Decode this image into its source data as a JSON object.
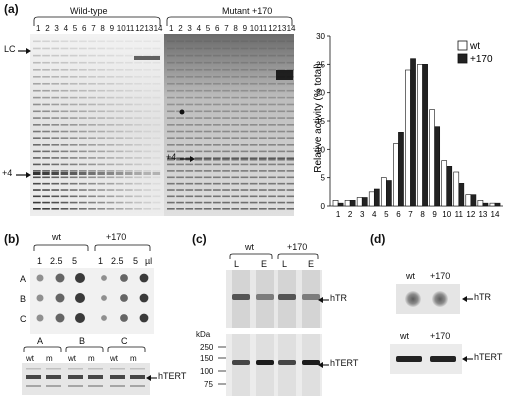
{
  "panels": {
    "a": {
      "label": "(a)",
      "gel": {
        "groups": [
          "Wild-type",
          "Mutant +170"
        ],
        "lanes": [
          "1",
          "2",
          "3",
          "4",
          "5",
          "6",
          "7",
          "8",
          "9",
          "10",
          "11",
          "12",
          "13",
          "14"
        ],
        "markers": [
          "LC",
          "+4"
        ]
      },
      "chart": {
        "ylabel": "Relative activity (% total)",
        "legend": [
          "wt",
          "+170"
        ]
      }
    },
    "b": {
      "label": "(b)",
      "groups": [
        "wt",
        "+170"
      ],
      "volumes": [
        "1",
        "2.5",
        "5"
      ],
      "unit": "µl",
      "rows": [
        "A",
        "B",
        "C"
      ],
      "blot_groups": [
        "A",
        "B",
        "C"
      ],
      "blot_lanes": [
        "wt",
        "m"
      ],
      "band": "hTERT"
    },
    "c": {
      "label": "(c)",
      "groups": [
        "wt",
        "+170"
      ],
      "lanes": [
        "L",
        "E",
        "L",
        "E"
      ],
      "top_band": "hTR",
      "kda_label": "kDa",
      "mw_markers": [
        "250",
        "150",
        "100",
        "75"
      ],
      "bottom_band": "hTERT"
    },
    "d": {
      "label": "(d)",
      "groups": [
        "wt",
        "+170"
      ],
      "top_band": "hTR",
      "bottom_band": "hTERT"
    }
  },
  "chart_data": {
    "type": "bar",
    "categories": [
      "1",
      "2",
      "3",
      "4",
      "5",
      "6",
      "7",
      "8",
      "9",
      "10",
      "11",
      "12",
      "13",
      "14"
    ],
    "series": [
      {
        "name": "wt",
        "values": [
          1,
          1,
          1.5,
          2.5,
          5,
          11,
          24,
          25,
          17,
          8,
          6,
          2,
          1,
          0.5
        ],
        "color": "#ffffff"
      },
      {
        "name": "+170",
        "values": [
          0.5,
          1,
          1.5,
          3,
          4.5,
          13,
          26,
          25,
          14,
          7,
          4,
          2,
          0.5,
          0.5
        ],
        "color": "#222222"
      }
    ],
    "xlabel": "",
    "ylabel": "Relative activity (% total)",
    "ylim": [
      0,
      30
    ],
    "yticks": [
      0,
      5,
      10,
      15,
      20,
      25,
      30
    ],
    "legend_position": "top-right",
    "grid": false
  }
}
